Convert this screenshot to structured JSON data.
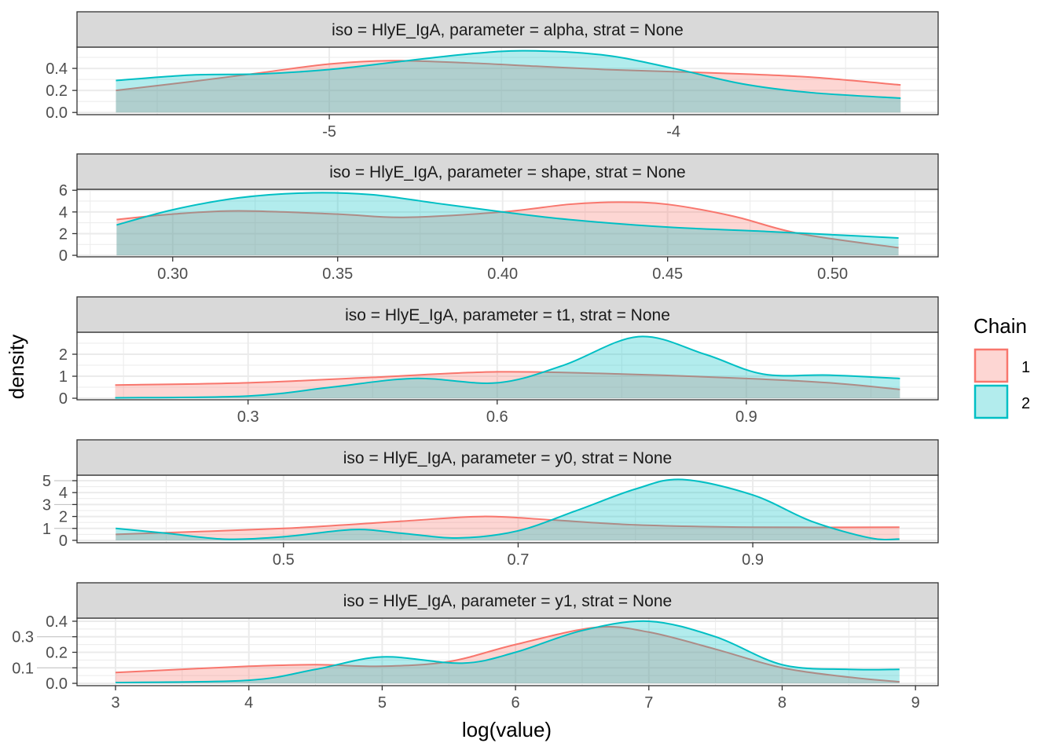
{
  "chart_data": {
    "type": "area",
    "facet_layout": "5 rows, shared legend",
    "xlabel": "log(value)",
    "ylabel": "density",
    "grid": true,
    "legend": {
      "title": "Chain",
      "position": "right",
      "entries": [
        {
          "label": "1",
          "color": "#F8766D"
        },
        {
          "label": "2",
          "color": "#00BFC4"
        }
      ]
    },
    "panels": [
      {
        "strip": "iso = HlyE_IgA, parameter = alpha, strat = None",
        "xlim": [
          -5.733,
          -3.231
        ],
        "ylim": [
          -0.02,
          0.593
        ],
        "xticks": [
          {
            "v": -5,
            "label": "-5"
          },
          {
            "v": -4,
            "label": "-4"
          }
        ],
        "yticks": [
          {
            "v": 0,
            "label": "0.0"
          },
          {
            "v": 0.2,
            "label": "0.2"
          },
          {
            "v": 0.4,
            "label": "0.4"
          }
        ],
        "series": [
          {
            "name": "1",
            "x": [
              -5.62,
              -5.4,
              -5.2,
              -5.0,
              -4.82,
              -4.6,
              -4.4,
              -4.2,
              -4.0,
              -3.8,
              -3.6,
              -3.34
            ],
            "y": [
              0.2,
              0.28,
              0.36,
              0.44,
              0.47,
              0.45,
              0.42,
              0.39,
              0.37,
              0.35,
              0.32,
              0.25
            ]
          },
          {
            "name": "2",
            "x": [
              -5.62,
              -5.4,
              -5.2,
              -5.0,
              -4.8,
              -4.6,
              -4.43,
              -4.2,
              -4.0,
              -3.8,
              -3.6,
              -3.34
            ],
            "y": [
              0.29,
              0.34,
              0.35,
              0.39,
              0.46,
              0.53,
              0.56,
              0.52,
              0.4,
              0.26,
              0.18,
              0.13
            ]
          }
        ]
      },
      {
        "strip": "iso = HlyE_IgA, parameter = shape, strat = None",
        "xlim": [
          0.271,
          0.532
        ],
        "ylim": [
          -0.14,
          6.09
        ],
        "xticks": [
          {
            "v": 0.3,
            "label": "0.30"
          },
          {
            "v": 0.35,
            "label": "0.35"
          },
          {
            "v": 0.4,
            "label": "0.40"
          },
          {
            "v": 0.45,
            "label": "0.45"
          },
          {
            "v": 0.5,
            "label": "0.50"
          }
        ],
        "yticks": [
          {
            "v": 0,
            "label": "0"
          },
          {
            "v": 2,
            "label": "2"
          },
          {
            "v": 4,
            "label": "4"
          },
          {
            "v": 6,
            "label": "6"
          }
        ],
        "series": [
          {
            "name": "1",
            "x": [
              0.283,
              0.3,
              0.32,
              0.35,
              0.37,
              0.4,
              0.42,
              0.435,
              0.45,
              0.47,
              0.49,
              0.52
            ],
            "y": [
              3.3,
              3.8,
              4.1,
              3.8,
              3.5,
              4.0,
              4.7,
              4.9,
              4.7,
              3.6,
              2.0,
              0.7
            ]
          },
          {
            "name": "2",
            "x": [
              0.283,
              0.3,
              0.32,
              0.34,
              0.36,
              0.38,
              0.4,
              0.42,
              0.45,
              0.48,
              0.5,
              0.52
            ],
            "y": [
              2.8,
              4.2,
              5.3,
              5.75,
              5.6,
              4.8,
              4.0,
              3.3,
              2.6,
              2.2,
              1.9,
              1.6
            ]
          }
        ]
      },
      {
        "strip": "iso = HlyE_IgA, parameter = t1, strat = None",
        "xlim": [
          0.094,
          1.131
        ],
        "ylim": [
          -0.07,
          3.0
        ],
        "xticks": [
          {
            "v": 0.3,
            "label": "0.3"
          },
          {
            "v": 0.6,
            "label": "0.6"
          },
          {
            "v": 0.9,
            "label": "0.9"
          }
        ],
        "yticks": [
          {
            "v": 0,
            "label": "0"
          },
          {
            "v": 1,
            "label": "1"
          },
          {
            "v": 2,
            "label": "2"
          }
        ],
        "series": [
          {
            "name": "1",
            "x": [
              0.14,
              0.3,
              0.45,
              0.6,
              0.75,
              0.9,
              1.0,
              1.085
            ],
            "y": [
              0.6,
              0.7,
              0.95,
              1.2,
              1.1,
              0.9,
              0.7,
              0.4
            ]
          },
          {
            "name": "2",
            "x": [
              0.14,
              0.3,
              0.4,
              0.5,
              0.6,
              0.68,
              0.77,
              0.85,
              0.92,
              1.0,
              1.085
            ],
            "y": [
              0.02,
              0.1,
              0.5,
              0.9,
              0.7,
              1.5,
              2.8,
              2.0,
              1.1,
              1.05,
              0.9
            ]
          }
        ]
      },
      {
        "strip": "iso = HlyE_IgA, parameter = y0, strat = None",
        "xlim": [
          0.324,
          1.058
        ],
        "ylim": [
          -0.2,
          5.46
        ],
        "xticks": [
          {
            "v": 0.5,
            "label": "0.5"
          },
          {
            "v": 0.7,
            "label": "0.7"
          },
          {
            "v": 0.9,
            "label": "0.9"
          }
        ],
        "yticks": [
          {
            "v": 0,
            "label": "0"
          },
          {
            "v": 1,
            "label": "1"
          },
          {
            "v": 2,
            "label": "2"
          },
          {
            "v": 3,
            "label": "3"
          },
          {
            "v": 4,
            "label": "4"
          },
          {
            "v": 5,
            "label": "5"
          }
        ],
        "series": [
          {
            "name": "1",
            "x": [
              0.357,
              0.5,
              0.6,
              0.67,
              0.73,
              0.8,
              0.9,
              1.025
            ],
            "y": [
              0.5,
              1.0,
              1.6,
              2.0,
              1.7,
              1.3,
              1.1,
              1.1
            ]
          },
          {
            "name": "2",
            "x": [
              0.357,
              0.4,
              0.45,
              0.5,
              0.56,
              0.6,
              0.65,
              0.7,
              0.75,
              0.8,
              0.84,
              0.9,
              0.95,
              1.0,
              1.025
            ],
            "y": [
              1.0,
              0.6,
              0.1,
              0.3,
              0.9,
              0.6,
              0.2,
              0.8,
              2.5,
              4.3,
              5.1,
              3.8,
              1.6,
              0.2,
              0.1
            ]
          }
        ]
      },
      {
        "strip": "iso = HlyE_IgA, parameter = y1, strat = None",
        "xlim": [
          2.711,
          9.17
        ],
        "ylim": [
          -0.015,
          0.42
        ],
        "xticks": [
          {
            "v": 3,
            "label": "3"
          },
          {
            "v": 4,
            "label": "4"
          },
          {
            "v": 5,
            "label": "5"
          },
          {
            "v": 6,
            "label": "6"
          },
          {
            "v": 7,
            "label": "7"
          },
          {
            "v": 8,
            "label": "8"
          },
          {
            "v": 9,
            "label": "9"
          }
        ],
        "yticks": [
          {
            "v": 0,
            "label": "0.0"
          },
          {
            "v": 0.1,
            "label": "0.1"
          },
          {
            "v": 0.2,
            "label": "0.2"
          },
          {
            "v": 0.3,
            "label": "0.3"
          },
          {
            "v": 0.4,
            "label": "0.4"
          }
        ],
        "series": [
          {
            "name": "1",
            "x": [
              3,
              4,
              4.5,
              5,
              5.5,
              6,
              6.6,
              7,
              7.5,
              8,
              8.5,
              8.88
            ],
            "y": [
              0.07,
              0.11,
              0.12,
              0.11,
              0.14,
              0.25,
              0.36,
              0.33,
              0.22,
              0.1,
              0.04,
              0.01
            ]
          },
          {
            "name": "2",
            "x": [
              3,
              4,
              4.5,
              5,
              5.6,
              6,
              6.5,
              7,
              7.5,
              8,
              8.5,
              8.88
            ],
            "y": [
              0.005,
              0.02,
              0.09,
              0.17,
              0.13,
              0.2,
              0.34,
              0.4,
              0.3,
              0.12,
              0.09,
              0.09
            ]
          }
        ]
      }
    ]
  }
}
